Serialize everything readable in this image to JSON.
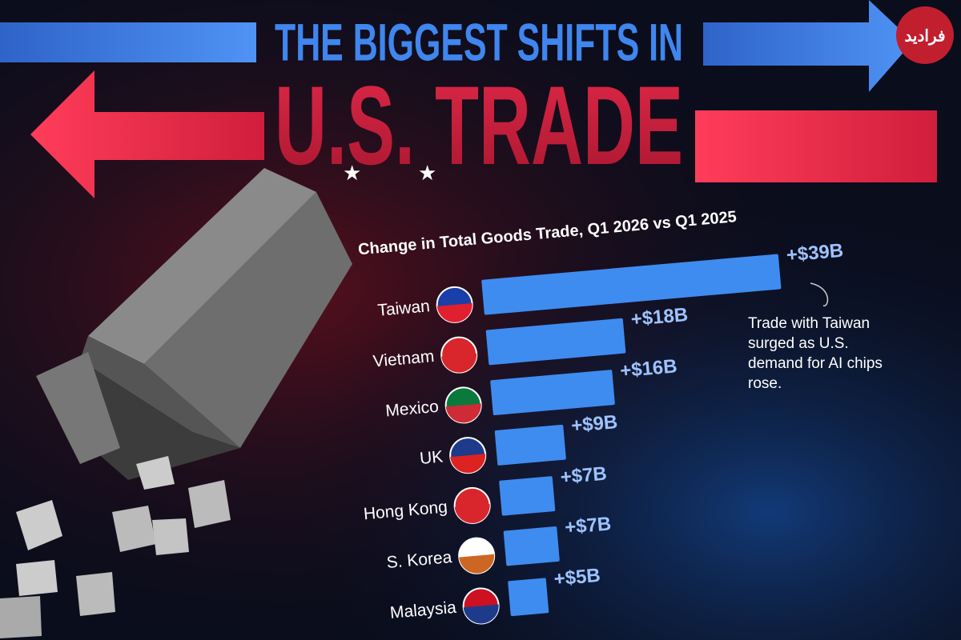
{
  "chart_data": {
    "type": "bar",
    "orientation": "horizontal",
    "title": [
      "THE BIGGEST SHIFTS IN",
      "U.S. TRADE"
    ],
    "subtitle": "Change in Total Goods Trade, Q1 2026 vs Q1 2025",
    "annotation": "Trade with Taiwan surged as U.S. demand for AI chips rose.",
    "watermark": "فرادید",
    "categories": [
      "Taiwan",
      "Vietnam",
      "Mexico",
      "UK",
      "Hong Kong",
      "S. Korea",
      "Malaysia"
    ],
    "values": [
      39,
      18,
      16,
      9,
      7,
      7,
      5
    ],
    "value_labels": [
      "+$39B",
      "+$18B",
      "+$16B",
      "+$9B",
      "+$7B",
      "+$7B",
      "+$5B"
    ],
    "color": "#3f8cf0"
  }
}
